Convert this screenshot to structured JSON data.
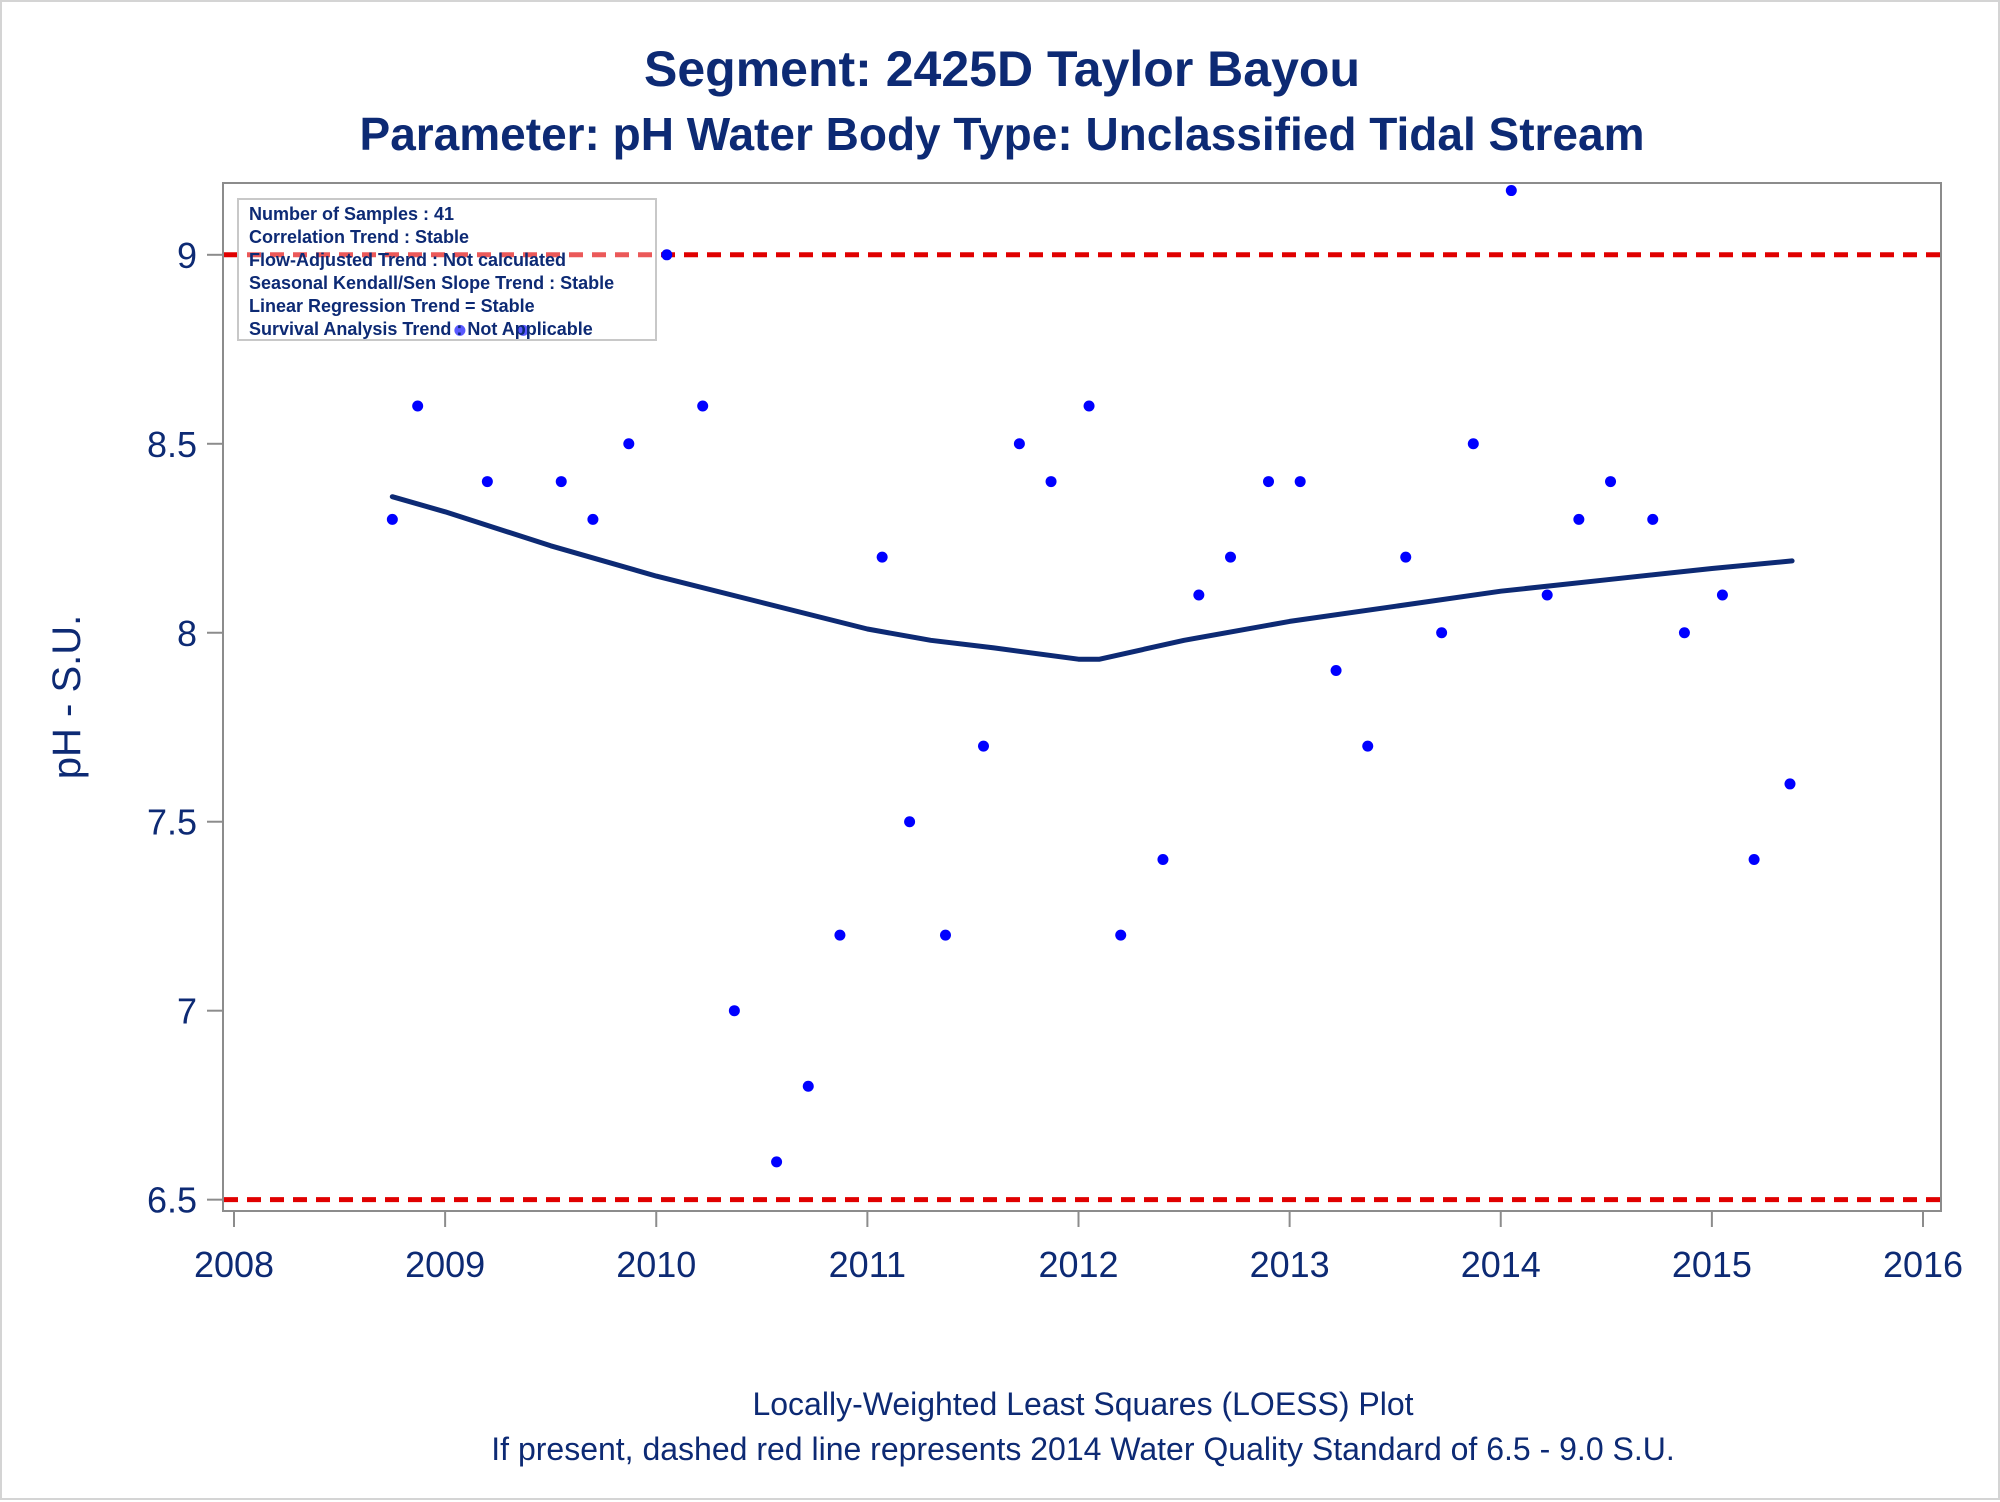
{
  "chart_data": {
    "type": "scatter",
    "title": "Segment: 2425D  Taylor Bayou",
    "subtitle": "Parameter: pH   Water Body Type: Unclassified Tidal Stream",
    "xlabel": "",
    "ylabel": "pH - S.U.",
    "xlim": [
      2008,
      2016
    ],
    "ylim": [
      6.47,
      9.19
    ],
    "xticks": [
      "2008",
      "2009",
      "2010",
      "2011",
      "2012",
      "2013",
      "2014",
      "2015",
      "2016"
    ],
    "yticks": [
      "6.5",
      "7",
      "7.5",
      "8",
      "8.5",
      "9"
    ],
    "grid": false,
    "stats_box": [
      "Number of Samples : 41",
      "Correlation Trend : Stable",
      "Flow-Adjusted Trend : Not calculated",
      "Seasonal Kendall/Sen Slope Trend : Stable",
      "Linear Regression Trend = Stable",
      "Survival Analysis Trend : Not Applicable"
    ],
    "standard_lines": [
      {
        "y": 9.0,
        "color": "#e00000"
      },
      {
        "y": 6.5,
        "color": "#e00000"
      }
    ],
    "points": [
      {
        "x": 2008.75,
        "y": 8.3
      },
      {
        "x": 2008.87,
        "y": 8.6
      },
      {
        "x": 2009.07,
        "y": 8.8
      },
      {
        "x": 2009.2,
        "y": 8.4
      },
      {
        "x": 2009.37,
        "y": 8.8
      },
      {
        "x": 2009.55,
        "y": 8.4
      },
      {
        "x": 2009.7,
        "y": 8.3
      },
      {
        "x": 2009.87,
        "y": 8.5
      },
      {
        "x": 2010.05,
        "y": 9.0
      },
      {
        "x": 2010.22,
        "y": 8.6
      },
      {
        "x": 2010.37,
        "y": 7.0
      },
      {
        "x": 2010.57,
        "y": 6.6
      },
      {
        "x": 2010.72,
        "y": 6.8
      },
      {
        "x": 2010.87,
        "y": 7.2
      },
      {
        "x": 2011.07,
        "y": 8.2
      },
      {
        "x": 2011.2,
        "y": 7.5
      },
      {
        "x": 2011.37,
        "y": 7.2
      },
      {
        "x": 2011.55,
        "y": 7.7
      },
      {
        "x": 2011.72,
        "y": 8.5
      },
      {
        "x": 2011.87,
        "y": 8.4
      },
      {
        "x": 2012.05,
        "y": 8.6
      },
      {
        "x": 2012.2,
        "y": 7.2
      },
      {
        "x": 2012.4,
        "y": 7.4
      },
      {
        "x": 2012.57,
        "y": 8.1
      },
      {
        "x": 2012.72,
        "y": 8.2
      },
      {
        "x": 2012.9,
        "y": 8.4
      },
      {
        "x": 2013.05,
        "y": 8.4
      },
      {
        "x": 2013.22,
        "y": 7.9
      },
      {
        "x": 2013.37,
        "y": 7.7
      },
      {
        "x": 2013.55,
        "y": 8.2
      },
      {
        "x": 2013.72,
        "y": 8.0
      },
      {
        "x": 2013.87,
        "y": 8.5
      },
      {
        "x": 2014.05,
        "y": 9.17
      },
      {
        "x": 2014.22,
        "y": 8.1
      },
      {
        "x": 2014.37,
        "y": 8.3
      },
      {
        "x": 2014.52,
        "y": 8.4
      },
      {
        "x": 2014.72,
        "y": 8.3
      },
      {
        "x": 2014.87,
        "y": 8.0
      },
      {
        "x": 2015.05,
        "y": 8.1
      },
      {
        "x": 2015.2,
        "y": 7.4
      },
      {
        "x": 2015.37,
        "y": 7.6
      }
    ],
    "loess": [
      {
        "x": 2008.75,
        "y": 8.36
      },
      {
        "x": 2009.0,
        "y": 8.32
      },
      {
        "x": 2009.5,
        "y": 8.23
      },
      {
        "x": 2010.0,
        "y": 8.15
      },
      {
        "x": 2010.5,
        "y": 8.08
      },
      {
        "x": 2011.0,
        "y": 8.01
      },
      {
        "x": 2011.3,
        "y": 7.98
      },
      {
        "x": 2011.6,
        "y": 7.96
      },
      {
        "x": 2012.0,
        "y": 7.93
      },
      {
        "x": 2012.1,
        "y": 7.93
      },
      {
        "x": 2012.5,
        "y": 7.98
      },
      {
        "x": 2013.0,
        "y": 8.03
      },
      {
        "x": 2013.5,
        "y": 8.07
      },
      {
        "x": 2014.0,
        "y": 8.11
      },
      {
        "x": 2014.5,
        "y": 8.14
      },
      {
        "x": 2015.0,
        "y": 8.17
      },
      {
        "x": 2015.38,
        "y": 8.19
      }
    ],
    "colors": {
      "points": "#0000ff",
      "loess": "#0d2a74",
      "standard": "#e00000",
      "text": "#0d2a74",
      "axis": "#8c8c8c"
    }
  },
  "footer": [
    "Locally-Weighted Least Squares (LOESS) Plot",
    "If present, dashed red line represents 2014 Water Quality Standard of 6.5 - 9.0 S.U."
  ]
}
